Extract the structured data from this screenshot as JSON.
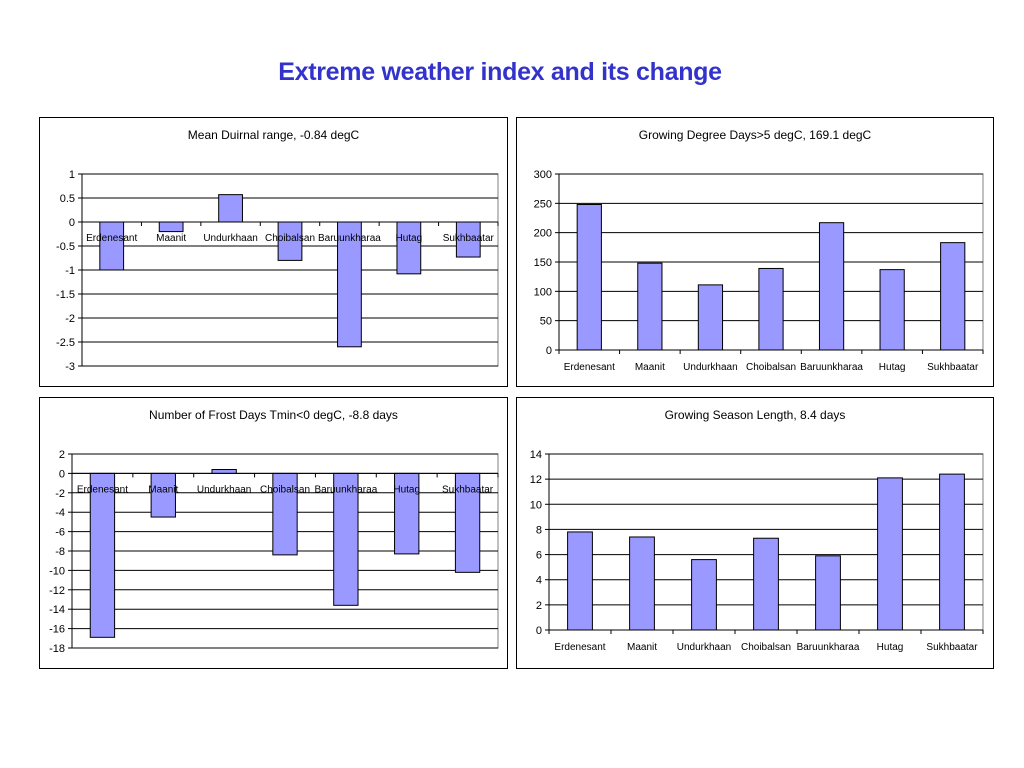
{
  "page": {
    "title": "Extreme weather index and its change"
  },
  "chart_data": [
    {
      "type": "bar",
      "title": "Mean Duirnal range, -0.84 degC",
      "categories": [
        "Erdenesant",
        "Maanit",
        "Undurkhaan",
        "Choibalsan",
        "Baruunkharaa",
        "Hutag",
        "Sukhbaatar"
      ],
      "values": [
        -1.0,
        -0.2,
        0.57,
        -0.8,
        -2.6,
        -1.08,
        -0.73
      ],
      "ylim": [
        -3,
        1
      ],
      "yticks": [
        1,
        0.5,
        0,
        -0.5,
        -1,
        -1.5,
        -2,
        -2.5,
        -3
      ],
      "ytick_labels": [
        "1",
        "0.5",
        "0",
        "-0.5",
        "-1",
        "-1.5",
        "-2",
        "-2.5",
        "-3"
      ],
      "grid": true,
      "xlabel": "",
      "ylabel": ""
    },
    {
      "type": "bar",
      "title": "Growing Degree Days>5 degC,  169.1 degC",
      "categories": [
        "Erdenesant",
        "Maanit",
        "Undurkhaan",
        "Choibalsan",
        "Baruunkharaa",
        "Hutag",
        "Sukhbaatar"
      ],
      "values": [
        248,
        148,
        111,
        139,
        217,
        137,
        183
      ],
      "ylim": [
        0,
        300
      ],
      "yticks": [
        300,
        250,
        200,
        150,
        100,
        50,
        0
      ],
      "ytick_labels": [
        "300",
        "250",
        "200",
        "150",
        "100",
        "50",
        "0"
      ],
      "grid": true,
      "xlabel": "",
      "ylabel": ""
    },
    {
      "type": "bar",
      "title": "Number of Frost Days Tmin<0 degC, -8.8 days",
      "categories": [
        "Erdenesant",
        "Maanit",
        "Undurkhaan",
        "Choibalsan",
        "Baruunkharaa",
        "Hutag",
        "Sukhbaatar"
      ],
      "values": [
        -16.9,
        -4.5,
        0.4,
        -8.4,
        -13.6,
        -8.3,
        -10.2
      ],
      "ylim": [
        -18,
        2
      ],
      "yticks": [
        2,
        0,
        -2,
        -4,
        -6,
        -8,
        -10,
        -12,
        -14,
        -16,
        -18
      ],
      "ytick_labels": [
        "2",
        "0",
        "-2",
        "-4",
        "-6",
        "-8",
        "-10",
        "-12",
        "-14",
        "-16",
        "-18"
      ],
      "grid": true,
      "xlabel": "",
      "ylabel": ""
    },
    {
      "type": "bar",
      "title": "Growing Season Length, 8.4 days",
      "categories": [
        "Erdenesant",
        "Maanit",
        "Undurkhaan",
        "Choibalsan",
        "Baruunkharaa",
        "Hutag",
        "Sukhbaatar"
      ],
      "values": [
        7.8,
        7.4,
        5.6,
        7.3,
        5.9,
        12.1,
        12.4
      ],
      "ylim": [
        0,
        14
      ],
      "yticks": [
        14,
        12,
        10,
        8,
        6,
        4,
        2,
        0
      ],
      "ytick_labels": [
        "14",
        "12",
        "10",
        "8",
        "6",
        "4",
        "2",
        "0"
      ],
      "grid": true,
      "xlabel": "",
      "ylabel": ""
    }
  ]
}
